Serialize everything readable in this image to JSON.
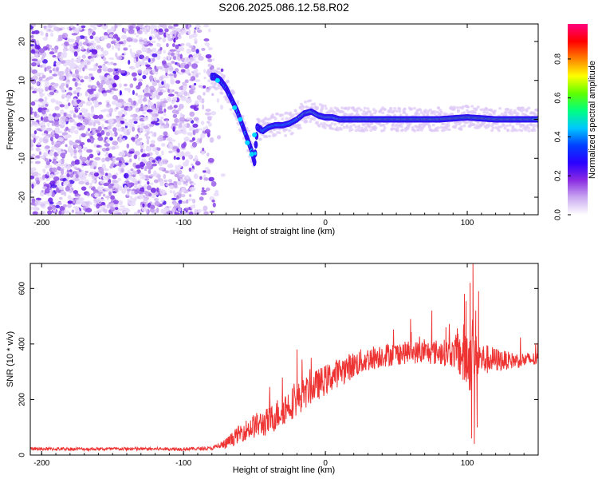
{
  "title": "S206.2025.086.12.58.R02",
  "chart_data": [
    {
      "type": "heatmap",
      "xlabel": "Height of straight line (km)",
      "ylabel": "Frequency (Hz)",
      "xlim": [
        -208,
        150
      ],
      "ylim": [
        -24.5,
        24.5
      ],
      "xticks": [
        -200,
        -100,
        0,
        100
      ],
      "yticks": [
        -20,
        -10,
        0,
        10,
        20
      ],
      "colorbar": {
        "label": "Normalized spectral amplitude",
        "range": [
          0,
          0.98
        ],
        "ticks": [
          0.0,
          0.2,
          0.4,
          0.6,
          0.8
        ],
        "tick_labels": [
          "0.0",
          "0.2",
          "0.4",
          "0.6",
          "0.8"
        ],
        "colors": [
          "#ffffff",
          "#c9a8f0",
          "#8a2be2",
          "#2a00ff",
          "#0040ff",
          "#00c8ff",
          "#00ff80",
          "#60ff00",
          "#ffff00",
          "#ff8000",
          "#ff0000",
          "#ff0080"
        ]
      },
      "ridge": [
        [
          -78,
          11
        ],
        [
          -74,
          10
        ],
        [
          -70,
          8
        ],
        [
          -66,
          5
        ],
        [
          -62,
          2
        ],
        [
          -58,
          -2
        ],
        [
          -55,
          -5
        ],
        [
          -52,
          -8
        ],
        [
          -50,
          -11
        ],
        [
          -48,
          -2
        ],
        [
          -44,
          -3
        ],
        [
          -40,
          -2
        ],
        [
          -35,
          -1.5
        ],
        [
          -30,
          -1.5
        ],
        [
          -25,
          -1
        ],
        [
          -20,
          0
        ],
        [
          -15,
          1.5
        ],
        [
          -10,
          2
        ],
        [
          -5,
          1
        ],
        [
          0,
          0.5
        ],
        [
          5,
          0.5
        ],
        [
          10,
          0
        ],
        [
          20,
          0
        ],
        [
          40,
          0
        ],
        [
          60,
          0
        ],
        [
          80,
          0
        ],
        [
          100,
          0.5
        ],
        [
          120,
          0
        ],
        [
          150,
          0
        ]
      ]
    },
    {
      "type": "line",
      "xlabel": "Height of straight line (km)",
      "ylabel": "SNR (10 * v/v)",
      "xlim": [
        -208,
        150
      ],
      "ylim": [
        0,
        690
      ],
      "xticks": [
        -200,
        -100,
        0,
        100
      ],
      "yticks": [
        0,
        200,
        400,
        600
      ],
      "color": "#ee3333",
      "envelope": [
        [
          -208,
          22
        ],
        [
          -150,
          22
        ],
        [
          -100,
          22
        ],
        [
          -80,
          24
        ],
        [
          -70,
          40
        ],
        [
          -60,
          80
        ],
        [
          -50,
          105
        ],
        [
          -40,
          120
        ],
        [
          -30,
          165
        ],
        [
          -20,
          200
        ],
        [
          -10,
          240
        ],
        [
          0,
          270
        ],
        [
          10,
          300
        ],
        [
          20,
          325
        ],
        [
          30,
          345
        ],
        [
          40,
          360
        ],
        [
          60,
          370
        ],
        [
          80,
          370
        ],
        [
          95,
          365
        ],
        [
          100,
          350
        ],
        [
          110,
          345
        ],
        [
          130,
          340
        ],
        [
          150,
          345
        ]
      ],
      "noise": [
        [
          -208,
          6
        ],
        [
          -80,
          6
        ],
        [
          -70,
          20
        ],
        [
          -50,
          45
        ],
        [
          -30,
          60
        ],
        [
          0,
          55
        ],
        [
          30,
          45
        ],
        [
          60,
          40
        ],
        [
          90,
          50
        ],
        [
          100,
          140
        ],
        [
          110,
          60
        ],
        [
          130,
          30
        ],
        [
          150,
          25
        ]
      ],
      "spikes": [
        {
          "x": -20,
          "y": 380
        },
        {
          "x": -10,
          "y": 350
        },
        {
          "x": 60,
          "y": 490
        },
        {
          "x": 75,
          "y": 520
        },
        {
          "x": 85,
          "y": 460
        },
        {
          "x": 98,
          "y": 580
        },
        {
          "x": 102,
          "y": 620
        },
        {
          "x": 104,
          "y": 690
        },
        {
          "x": 106,
          "y": 520
        },
        {
          "x": 108,
          "y": 590
        },
        {
          "x": 105,
          "y": 40
        },
        {
          "x": 103,
          "y": 60
        },
        {
          "x": 107,
          "y": 100
        }
      ]
    }
  ]
}
